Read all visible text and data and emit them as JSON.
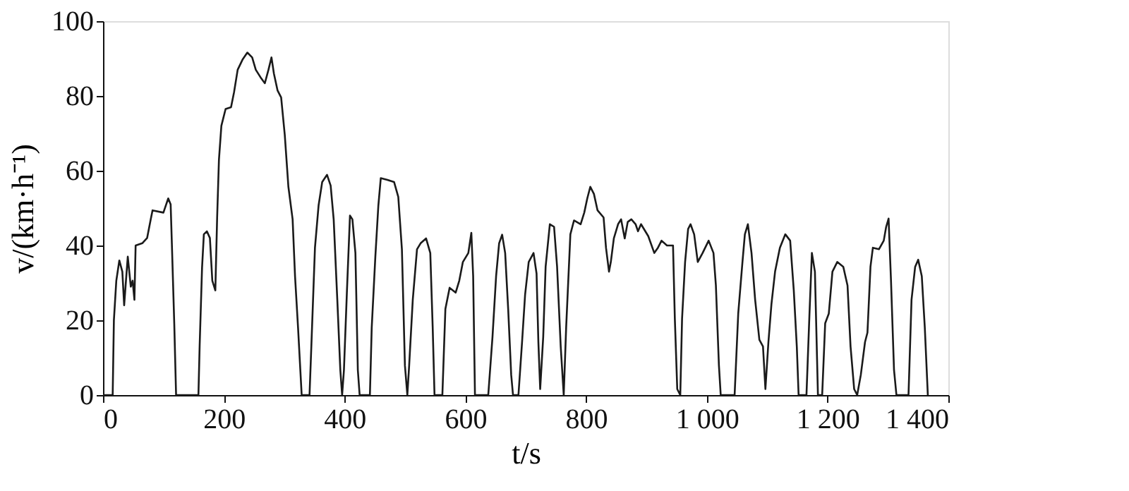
{
  "chart_data": {
    "type": "line",
    "xlabel": "t/s",
    "ylabel": "v/(km·h⁻¹)",
    "xlim": [
      0,
      1400
    ],
    "ylim": [
      0,
      100
    ],
    "xticks": [
      0,
      200,
      400,
      600,
      800,
      {
        "value": 1000,
        "label": "1 000"
      },
      {
        "value": 1200,
        "label": "1 200"
      },
      {
        "value": 1400,
        "label": "1 400"
      }
    ],
    "yticks": [
      0,
      20,
      40,
      60,
      80,
      100
    ],
    "grid": false,
    "legend": false,
    "marker": "none",
    "line_style": "solid",
    "series": [
      {
        "color": "#1a1a1a",
        "x": [
          0,
          16,
          18,
          22,
          27,
          32,
          35,
          38,
          41,
          46,
          49,
          52,
          54,
          65,
          73,
          79,
          82,
          100,
          108,
          112,
          114,
          118,
          121,
          158,
          160,
          164,
          167,
          172,
          177,
          181,
          186,
          189,
          192,
          196,
          203,
          212,
          217,
          223,
          231,
          239,
          247,
          253,
          262,
          268,
          274,
          279,
          283,
          289,
          295,
          301,
          307,
          314,
          318,
          323,
          329,
          342,
          345,
          351,
          357,
          363,
          371,
          377,
          382,
          388,
          393,
          396,
          399,
          404,
          409,
          413,
          418,
          422,
          425,
          442,
          445,
          451,
          456,
          460,
          470,
          482,
          489,
          495,
          500,
          504,
          507,
          513,
          520,
          526,
          535,
          542,
          546,
          549,
          562,
          567,
          574,
          584,
          590,
          596,
          605,
          610,
          613,
          616,
          638,
          645,
          651,
          656,
          661,
          666,
          671,
          676,
          679,
          688,
          694,
          699,
          705,
          713,
          718,
          721,
          724,
          729,
          733,
          740,
          747,
          752,
          758,
          763,
          767,
          774,
          780,
          791,
          797,
          802,
          807,
          813,
          819,
          829,
          833,
          838,
          841,
          846,
          853,
          858,
          864,
          869,
          875,
          882,
          886,
          891,
          903,
          913,
          919,
          925,
          934,
          944,
          947,
          951,
          956,
          959,
          964,
          969,
          973,
          979,
          985,
          993,
          1003,
          1011,
          1015,
          1020,
          1023,
          1046,
          1052,
          1059,
          1063,
          1068,
          1074,
          1080,
          1087,
          1093,
          1097,
          1102,
          1107,
          1113,
          1121,
          1130,
          1138,
          1144,
          1149,
          1152,
          1165,
          1170,
          1174,
          1179,
          1184,
          1191,
          1196,
          1202,
          1208,
          1216,
          1226,
          1233,
          1238,
          1244,
          1249,
          1255,
          1262,
          1266,
          1271,
          1275,
          1285,
          1293,
          1297,
          1301,
          1305,
          1310,
          1314,
          1334,
          1339,
          1345,
          1350,
          1356,
          1361,
          1366
        ],
        "values": [
          0,
          0,
          20,
          30.6,
          36,
          33,
          24,
          30.6,
          37,
          29,
          30.6,
          25.5,
          40,
          40.6,
          42,
          47,
          49.4,
          48.8,
          52.6,
          51,
          40.6,
          19,
          0,
          0,
          13,
          34,
          43,
          43.8,
          42,
          30.6,
          28,
          47.5,
          63,
          72,
          76.5,
          77,
          81,
          87,
          89.7,
          91.6,
          90.3,
          87,
          84.7,
          83.4,
          87,
          90.3,
          86,
          81.5,
          79.6,
          69.6,
          55.7,
          47,
          31.8,
          18,
          0,
          0,
          13,
          39.4,
          50.7,
          57,
          58.9,
          56,
          47,
          25.5,
          6.7,
          0,
          6.7,
          28,
          48,
          47,
          38,
          6.7,
          0,
          0,
          18,
          37,
          50.7,
          58,
          57.6,
          57,
          53,
          39,
          7.9,
          0,
          7.9,
          25.5,
          39,
          40.6,
          41.9,
          38,
          18,
          0,
          0,
          23,
          28.7,
          27.4,
          30.6,
          35.6,
          38,
          43.4,
          31.8,
          0,
          0,
          15.5,
          31.8,
          40.6,
          42.9,
          38,
          23,
          5.4,
          0,
          0,
          14.2,
          26.8,
          35.6,
          38,
          32.5,
          14.2,
          1.6,
          15.5,
          34.3,
          45.7,
          45,
          34.3,
          13,
          0,
          18,
          43,
          46.7,
          45.7,
          48.8,
          52.6,
          55.7,
          53.8,
          49.4,
          47.5,
          39.4,
          33,
          35.6,
          41.9,
          45.7,
          47,
          41.9,
          46.3,
          47,
          45.7,
          43.8,
          45.7,
          42.5,
          38,
          39.4,
          41.3,
          40,
          40,
          20.5,
          1.6,
          0,
          20.5,
          35.6,
          44.4,
          45.7,
          43,
          35.6,
          38,
          41.3,
          38,
          29.3,
          8,
          0,
          0,
          21.8,
          35.6,
          43,
          45.7,
          38,
          25.5,
          14.8,
          13,
          1.6,
          14.2,
          24.3,
          33,
          39.4,
          43,
          41.3,
          28,
          13,
          0,
          0,
          21.8,
          38,
          33,
          0,
          0,
          19.2,
          21.8,
          33,
          35.6,
          34.3,
          29.3,
          13,
          1.6,
          0,
          5.4,
          14.2,
          16.7,
          34.3,
          39.4,
          39,
          41.3,
          45,
          47.2,
          30.6,
          6.7,
          0,
          0,
          25.5,
          34.3,
          36.2,
          31.8,
          18,
          0
        ]
      }
    ]
  }
}
